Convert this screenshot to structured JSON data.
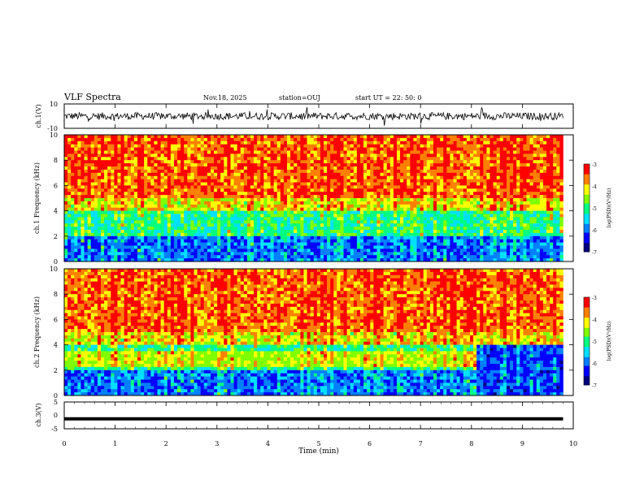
{
  "header": {
    "title": "VLF Spectra",
    "date": "Nov.18, 2025",
    "station": "station=OUJ",
    "start_ut": "start  UT =   22: 50: 0"
  },
  "colors": {
    "cmap": [
      "#000080",
      "#0000ff",
      "#0080ff",
      "#00e0ff",
      "#00ff80",
      "#80ff00",
      "#ffff00",
      "#ff8000",
      "#ff0000",
      "#ffffff"
    ]
  },
  "chart_data": [
    {
      "type": "line",
      "name": "ch1-waveform",
      "ylabel": "ch.1(V)",
      "ylim": [
        -10,
        10
      ],
      "yticks": [
        "10",
        "-10"
      ],
      "xlim": [
        0,
        10
      ],
      "description_series": "noisy waveform mostly between -3 and 3 V with spikes",
      "series": [
        {
          "name": "ch.1",
          "baseline": 0,
          "amplitude": 3
        }
      ]
    },
    {
      "type": "heatmap",
      "name": "ch1-spectrogram",
      "ylabel": "ch.1\nFrequency (kHz)",
      "ylim": [
        0,
        10
      ],
      "yticks": [
        "0",
        "2",
        "4",
        "6",
        "8",
        "10"
      ],
      "xlim": [
        0,
        9.8
      ],
      "colorbar": {
        "label": "log(PSD)(V²/Hz)",
        "range": [
          -7,
          -3
        ],
        "ticks": [
          "-3",
          "-4",
          "-5",
          "-6",
          "-7"
        ]
      }
    },
    {
      "type": "heatmap",
      "name": "ch2-spectrogram",
      "ylabel": "ch.2\nFrequency (kHz)",
      "ylim": [
        0,
        10
      ],
      "yticks": [
        "0",
        "2",
        "4",
        "6",
        "8",
        "10"
      ],
      "xlim": [
        0,
        9.8
      ],
      "band_end_min": 8.1,
      "colorbar": {
        "label": "log(PSD)(V²/Hz)",
        "range": [
          -7,
          -3
        ],
        "ticks": [
          "-3",
          "-4",
          "-5",
          "-6",
          "-7"
        ]
      }
    },
    {
      "type": "line",
      "name": "ch3-level",
      "ylabel": "ch.3(V)",
      "ylim": [
        -5,
        5
      ],
      "yticks": [
        "5",
        "0",
        "-5"
      ],
      "xlim": [
        0,
        10
      ],
      "series": [
        {
          "name": "ch.3",
          "x": [
            0,
            9.8
          ],
          "values": [
            -1.3,
            -1.3
          ]
        }
      ]
    }
  ],
  "xaxis": {
    "label": "Time (min)",
    "ticks": [
      "0",
      "1",
      "2",
      "3",
      "4",
      "5",
      "6",
      "7",
      "8",
      "9",
      "10"
    ]
  }
}
